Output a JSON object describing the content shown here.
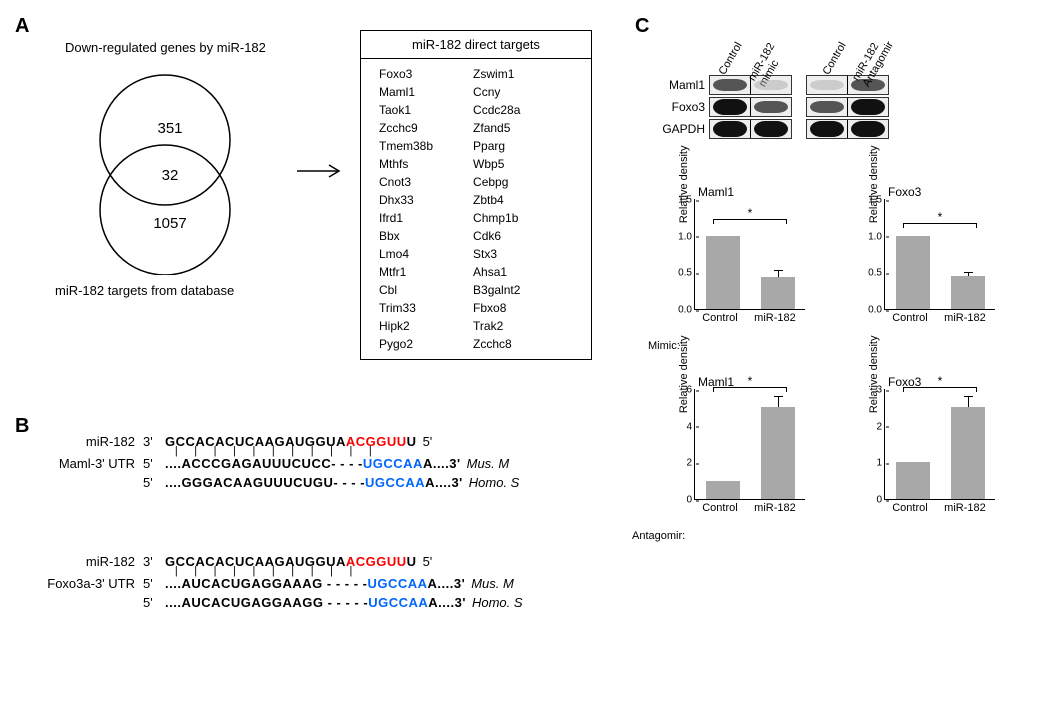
{
  "panelA": {
    "label": "A",
    "venn": {
      "top_label": "Down-regulated genes by miR-182",
      "bottom_label": "miR-182 targets from database",
      "n_top_only": "351",
      "n_overlap": "32",
      "n_bottom_only": "1057"
    },
    "arrow": "→",
    "targets_title": "miR-182 direct targets",
    "targets_col1": [
      "Foxo3",
      "Maml1",
      "Taok1",
      "Zcchc9",
      "Tmem38b",
      "Mthfs",
      "Cnot3",
      "Dhx33",
      "Ifrd1",
      "Bbx",
      "Lmo4",
      "Mtfr1",
      "Cbl",
      "Trim33",
      "Hipk2",
      "Pygo2"
    ],
    "targets_col2": [
      "Zswim1",
      "Ccny",
      "Ccdc28a",
      "Zfand5",
      "Pparg",
      "Wbp5",
      "Cebpg",
      "Zbtb4",
      "Chmp1b",
      "Cdk6",
      "Stx3",
      "Ahsa1",
      "B3galnt2",
      "Fbxo8",
      "Trak2",
      "Zcchc8"
    ]
  },
  "panelB": {
    "label": "B",
    "block1": {
      "mir_label": "miR-182",
      "mir_5": "3'",
      "mir_seq_plain1": "GCCACACUCAAGAUGGUA",
      "mir_seq_red": "ACGGUU",
      "mir_seq_plain2": "U",
      "mir_3": "5'",
      "utr_label": "Maml-3' UTR",
      "mus_5": "5'",
      "mus_seq1": "....ACCCGAGAUUUCUCC- - - -",
      "mus_blue": "UGCCAA",
      "mus_seq2": "A....3'",
      "mus_sp": "Mus. M",
      "homo_5": "5'",
      "homo_seq1": "....GGGACAAGUUUCUGU- - - -",
      "homo_blue": "UGCCAA",
      "homo_seq2": "A....3'",
      "homo_sp": "Homo. S"
    },
    "block2": {
      "mir_label": "miR-182",
      "mir_5": "3'",
      "mir_seq_plain1": "GCCACACUCAAGAUGGUA",
      "mir_seq_red": "ACGGUU",
      "mir_seq_plain2": "U",
      "mir_3": "5'",
      "utr_label": "Foxo3a-3' UTR",
      "mus_5": "5'",
      "mus_seq1": "....AUCACUGAGGAAAG - - - - -",
      "mus_blue": "UGCCAA",
      "mus_seq2": "A....3'",
      "mus_sp": "Mus. M",
      "homo_5": "5'",
      "homo_seq1": "....AUCACUGAGGAAGG - - - - -",
      "homo_blue": "UGCCAA",
      "homo_seq2": "A....3'",
      "homo_sp": "Homo. S"
    }
  },
  "panelC": {
    "label": "C",
    "blot": {
      "group1_labels": [
        "Control",
        "miR-182\nmimic"
      ],
      "group2_labels": [
        "Control",
        "miR-182\nAntagomir"
      ],
      "rows": [
        "Maml1",
        "Foxo3",
        "GAPDH"
      ]
    },
    "charts": {
      "ylab": "Relative density",
      "sig": "*",
      "mimic_prefix": "Mimic:",
      "antag_prefix": "Antagomir:",
      "xlabels": [
        "Control",
        "miR-182"
      ],
      "mimic_maml1": {
        "title": "Maml1",
        "ymax": 1.5,
        "yticks": [
          "0.0",
          "0.5",
          "1.0",
          "1.5"
        ],
        "bars": [
          1.0,
          0.43
        ],
        "err": [
          0,
          0.1
        ]
      },
      "mimic_foxo3": {
        "title": "Foxo3",
        "ymax": 1.5,
        "yticks": [
          "0.0",
          "0.5",
          "1.0",
          "1.5"
        ],
        "bars": [
          1.0,
          0.45
        ],
        "err": [
          0,
          0.05
        ]
      },
      "antag_maml1": {
        "title": "Maml1",
        "ymax": 6,
        "yticks": [
          "0",
          "2",
          "4",
          "6"
        ],
        "bars": [
          1.0,
          5.0
        ],
        "err": [
          0,
          0.6
        ]
      },
      "antag_foxo3": {
        "title": "Foxo3",
        "ymax": 3,
        "yticks": [
          "0",
          "1",
          "2",
          "3"
        ],
        "bars": [
          1.0,
          2.5
        ],
        "err": [
          0,
          0.3
        ]
      }
    }
  },
  "style": {
    "bar_color": "#a8a8a8",
    "seq_red": "#ff0000",
    "seq_blue": "#0066ff"
  }
}
